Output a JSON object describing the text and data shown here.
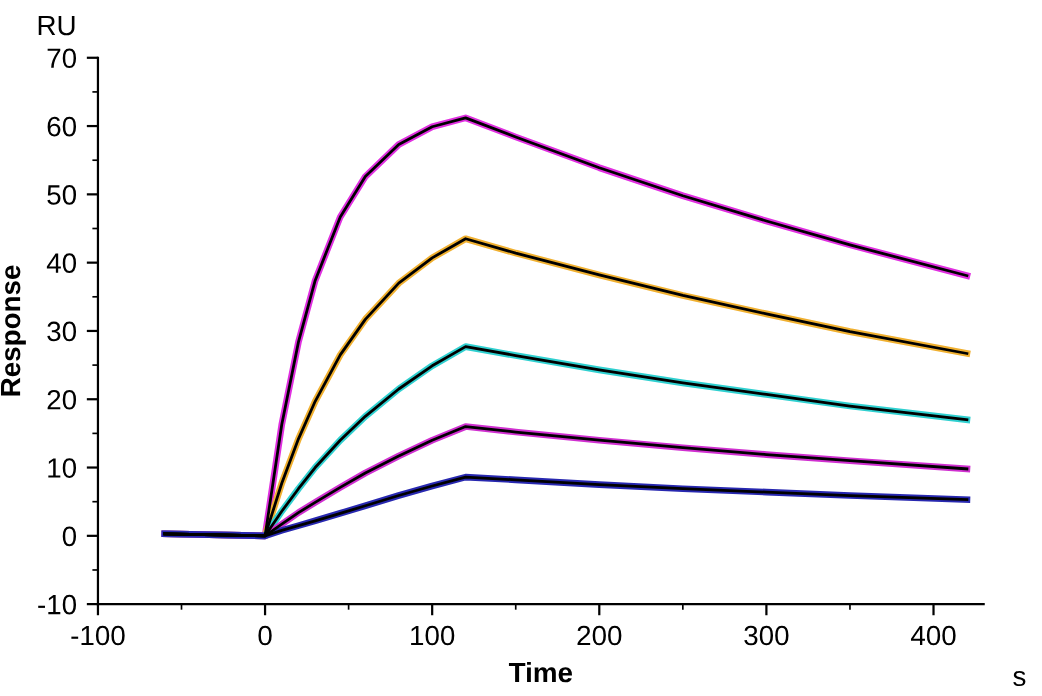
{
  "chart_data": {
    "type": "line",
    "xlabel": "Time",
    "ylabel": "Response",
    "annotations": [
      "RU",
      "s"
    ],
    "x": [
      -60,
      0,
      10,
      20,
      30,
      45,
      60,
      80,
      100,
      120,
      150,
      200,
      250,
      300,
      350,
      420
    ],
    "xlim": [
      -100,
      430
    ],
    "xticks": [
      -100,
      0,
      100,
      200,
      300,
      400
    ],
    "ylim": [
      -10,
      70
    ],
    "yticks": [
      -10,
      0,
      10,
      20,
      30,
      40,
      50,
      60,
      70
    ],
    "grid": false,
    "marker": "none",
    "line_style": "solid",
    "series": [
      {
        "color": "#e030e0",
        "values": [
          0.3,
          0,
          16.3,
          28.4,
          37.4,
          46.7,
          52.6,
          57.3,
          59.9,
          61.2,
          58.4,
          53.9,
          49.8,
          46.1,
          42.6,
          38.1
        ]
      },
      {
        "color": "#f0b030",
        "values": [
          0.3,
          0,
          7.7,
          14.2,
          19.7,
          26.5,
          31.7,
          37.0,
          40.7,
          43.5,
          41.4,
          38.2,
          35.2,
          32.5,
          29.9,
          26.7
        ]
      },
      {
        "color": "#30d0d0",
        "values": [
          0.3,
          0,
          3.6,
          6.9,
          10.0,
          14.0,
          17.5,
          21.5,
          24.9,
          27.7,
          26.4,
          24.3,
          22.4,
          20.7,
          19.0,
          17.0
        ]
      },
      {
        "color": "#d030d0",
        "values": [
          0.3,
          0,
          1.7,
          3.4,
          4.9,
          7.1,
          9.2,
          11.7,
          14.0,
          16.0,
          15.2,
          14.0,
          12.9,
          11.9,
          11.0,
          9.8
        ]
      },
      {
        "color": "#2828b0",
        "values": [
          0.3,
          0,
          0.8,
          1.5,
          2.2,
          3.3,
          4.4,
          5.9,
          7.3,
          8.6,
          8.2,
          7.5,
          6.9,
          6.4,
          5.9,
          5.3
        ]
      },
      {
        "color": "#000000",
        "values": [
          0.3,
          0,
          16.3,
          28.4,
          37.4,
          46.7,
          52.6,
          57.3,
          59.9,
          61.2,
          58.4,
          53.9,
          49.8,
          46.1,
          42.6,
          38.1
        ]
      },
      {
        "color": "#000000",
        "values": [
          0.3,
          0,
          7.7,
          14.2,
          19.7,
          26.5,
          31.7,
          37.0,
          40.7,
          43.5,
          41.4,
          38.2,
          35.2,
          32.5,
          29.9,
          26.7
        ]
      },
      {
        "color": "#000000",
        "values": [
          0.3,
          0,
          3.6,
          6.9,
          10.0,
          14.0,
          17.5,
          21.5,
          24.9,
          27.7,
          26.4,
          24.3,
          22.4,
          20.7,
          19.0,
          17.0
        ]
      },
      {
        "color": "#000000",
        "values": [
          0.3,
          0,
          1.7,
          3.4,
          4.9,
          7.1,
          9.2,
          11.7,
          14.0,
          16.0,
          15.2,
          14.0,
          12.9,
          11.9,
          11.0,
          9.8
        ]
      },
      {
        "color": "#000000",
        "values": [
          0.3,
          0,
          0.8,
          1.5,
          2.2,
          3.3,
          4.4,
          5.9,
          7.3,
          8.6,
          8.2,
          7.5,
          6.9,
          6.4,
          5.9,
          5.3
        ]
      }
    ]
  }
}
